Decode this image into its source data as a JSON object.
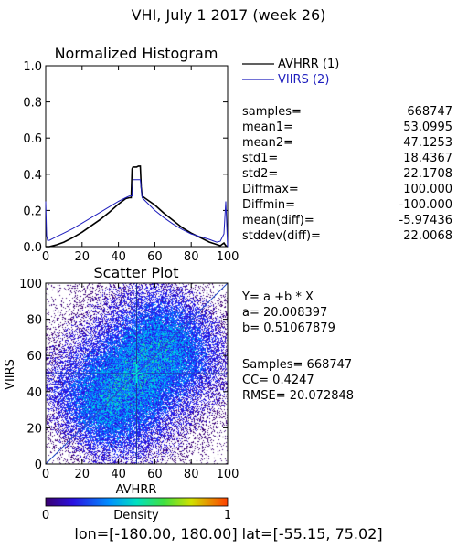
{
  "header": {
    "title": "VHI,  July 1 2017 (week 26)"
  },
  "histogram": {
    "title": "Normalized Histogram",
    "legend": [
      {
        "label": "AVHRR (1)",
        "color": "#000000"
      },
      {
        "label": "VIIRS (2)",
        "color": "#1e1ebe"
      }
    ],
    "stats": [
      {
        "label": "samples=",
        "value": "668747"
      },
      {
        "label": "mean1=",
        "value": "53.0995"
      },
      {
        "label": "mean2=",
        "value": "47.1253"
      },
      {
        "label": "std1=",
        "value": "18.4367"
      },
      {
        "label": "std2=",
        "value": "22.1708"
      },
      {
        "label": "Diffmax=",
        "value": "100.000"
      },
      {
        "label": "Diffmin=",
        "value": "-100.000"
      },
      {
        "label": "mean(diff)=",
        "value": "-5.97436"
      },
      {
        "label": "stddev(diff)=",
        "value": "22.0068"
      }
    ]
  },
  "scatter": {
    "title": "Scatter Plot",
    "xlabel": "AVHRR",
    "ylabel": "VIIRS",
    "regression": [
      "Y= a +b * X",
      "a= 20.008397",
      "b= 0.51067879"
    ],
    "metrics": [
      "Samples= 668747",
      "CC=  0.4247",
      "RMSE= 20.072848"
    ],
    "colorbar": {
      "label": "Density",
      "min_label": "0",
      "max_label": "1"
    }
  },
  "footer": {
    "range_text": "lon=[-180.00, 180.00] lat=[-55.15, 75.02]"
  },
  "chart_data": [
    {
      "type": "line",
      "title": "Normalized Histogram",
      "xlabel": "",
      "ylabel": "",
      "xlim": [
        0,
        100
      ],
      "ylim": [
        0.0,
        1.0
      ],
      "xticks": [
        0,
        20,
        40,
        60,
        80,
        100
      ],
      "yticks": [
        0.0,
        0.2,
        0.4,
        0.6,
        0.8,
        1.0
      ],
      "legend_position": "right",
      "series": [
        {
          "name": "AVHRR (1)",
          "color": "#000000",
          "x": [
            0,
            1,
            2,
            4,
            6,
            10,
            15,
            20,
            25,
            30,
            35,
            40,
            44,
            46,
            47,
            47.5,
            48,
            50,
            51,
            52,
            52.5,
            53,
            55,
            60,
            65,
            70,
            75,
            80,
            85,
            90,
            93,
            96,
            98,
            99,
            100
          ],
          "y": [
            0.0,
            0.0,
            0.0,
            0.005,
            0.01,
            0.025,
            0.05,
            0.08,
            0.115,
            0.15,
            0.19,
            0.235,
            0.265,
            0.27,
            0.27,
            0.43,
            0.44,
            0.44,
            0.445,
            0.445,
            0.33,
            0.28,
            0.265,
            0.23,
            0.185,
            0.145,
            0.105,
            0.075,
            0.05,
            0.025,
            0.015,
            0.005,
            0.02,
            0.005,
            0.0
          ]
        },
        {
          "name": "VIIRS (2)",
          "color": "#1e1ebe",
          "x": [
            0,
            0.5,
            1,
            2,
            4,
            6,
            10,
            15,
            20,
            25,
            30,
            35,
            40,
            44,
            46,
            47.5,
            48,
            50,
            52,
            53,
            55,
            60,
            65,
            70,
            75,
            80,
            85,
            90,
            94,
            96,
            98,
            99,
            100
          ],
          "y": [
            0.25,
            0.06,
            0.035,
            0.035,
            0.045,
            0.055,
            0.075,
            0.1,
            0.13,
            0.16,
            0.19,
            0.22,
            0.25,
            0.27,
            0.28,
            0.28,
            0.37,
            0.37,
            0.37,
            0.27,
            0.25,
            0.2,
            0.16,
            0.125,
            0.095,
            0.07,
            0.055,
            0.04,
            0.025,
            0.03,
            0.07,
            0.25,
            0.0
          ]
        }
      ]
    },
    {
      "type": "heatmap",
      "title": "Scatter Plot",
      "xlabel": "AVHRR",
      "ylabel": "VIIRS",
      "xlim": [
        0,
        100
      ],
      "ylim": [
        0,
        100
      ],
      "xticks": [
        0,
        20,
        40,
        60,
        80,
        100
      ],
      "yticks": [
        0,
        20,
        40,
        60,
        80,
        100
      ],
      "regression_line": {
        "a": 20.008397,
        "b": 0.51067879
      },
      "identity_line": true,
      "colorbar": {
        "label": "Density",
        "range": [
          0,
          1
        ]
      }
    }
  ]
}
